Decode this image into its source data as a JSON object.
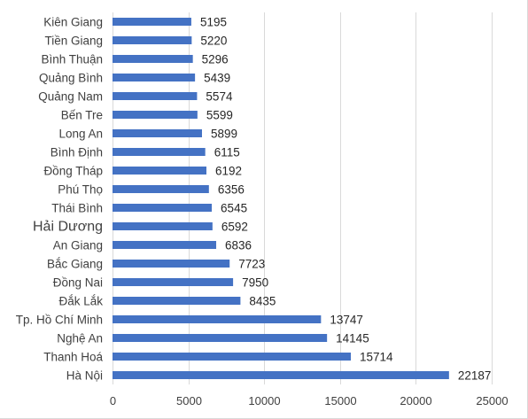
{
  "chart_data": {
    "type": "bar",
    "orientation": "horizontal",
    "categories": [
      "Kiên Giang",
      "Tiền Giang",
      "Bình Thuận",
      "Quảng Bình",
      "Quảng Nam",
      "Bến Tre",
      "Long An",
      "Bình Định",
      "Đồng Tháp",
      "Phú Thọ",
      "Thái Bình",
      "Hải Dương",
      "An Giang",
      "Bắc Giang",
      "Đồng Nai",
      "Đắk Lắk",
      "Tp. Hồ Chí Minh",
      "Nghệ An",
      "Thanh Hoá",
      "Hà Nội"
    ],
    "values": [
      5195,
      5220,
      5296,
      5439,
      5574,
      5599,
      5899,
      6115,
      6192,
      6356,
      6545,
      6592,
      6836,
      7723,
      7950,
      8435,
      13747,
      14145,
      15714,
      22187
    ],
    "value_labels": [
      "5195",
      "5220",
      "5296",
      "5439",
      "5574",
      "5599",
      "5899",
      "6115",
      "6192",
      "6356",
      "6545",
      "6592",
      "6836",
      "7723",
      "7950",
      "8435",
      "13747",
      "14145",
      "15714",
      "22187"
    ],
    "x_ticks": [
      "0",
      "5000",
      "10000",
      "15000",
      "20000",
      "25000"
    ],
    "xlim": [
      0,
      25000
    ],
    "title": "",
    "xlabel": "",
    "ylabel": "",
    "grid": "vertical",
    "legend": "none",
    "bar_color": "#4472c4"
  }
}
